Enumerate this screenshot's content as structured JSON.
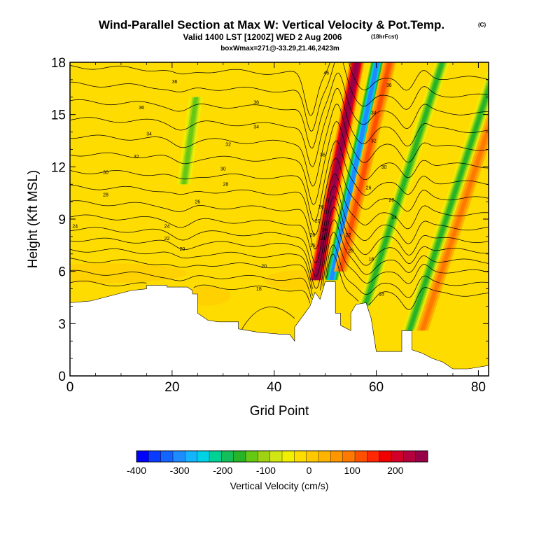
{
  "chart_data": {
    "type": "contour",
    "title": "Wind-Parallel Section at Max W: Vertical Velocity & Pot.Temp.",
    "title_suffix": "(C)",
    "subtitle": "Valid 1400 LST [1200Z] WED 2 Aug 2006",
    "subtitle_suffix": "(18hrFcst)",
    "subtitle2": "boxWmax=271@-33.29,21.46,2423m",
    "xlabel": "Grid Point",
    "ylabel": "Height (Kft MSL)",
    "xlim": [
      0,
      82
    ],
    "ylim": [
      0,
      18
    ],
    "xticks": [
      "0",
      "20",
      "40",
      "60",
      "80"
    ],
    "yticks": [
      "0",
      "3",
      "6",
      "9",
      "12",
      "15",
      "18"
    ],
    "colorbar": {
      "label": "Vertical Velocity (cm/s)",
      "min": -400,
      "max": 275,
      "ticks": [
        "-400",
        "-300",
        "-200",
        "-100",
        "0",
        "100",
        "200"
      ],
      "colors": [
        "#0000ff",
        "#0a3cff",
        "#1464ff",
        "#1e8cff",
        "#14b4ff",
        "#00d2e6",
        "#00d296",
        "#14be5a",
        "#28b428",
        "#64c814",
        "#a0d214",
        "#d2e614",
        "#f0f000",
        "#ffdc00",
        "#ffc800",
        "#ffb400",
        "#ff9600",
        "#ff7800",
        "#ff5000",
        "#ff2800",
        "#f00000",
        "#d20028",
        "#b4003c",
        "#960046"
      ]
    },
    "velocity_features": [
      {
        "name": "updraft-core",
        "x_grid": 48.2,
        "tilt": 0.16,
        "z_bottom_kft": 5.5,
        "z_top_kft": 18,
        "w_cm_s": 271
      },
      {
        "name": "downdraft-core",
        "x_grid": 51.2,
        "tilt": 0.18,
        "z_bottom_kft": 5.5,
        "z_top_kft": 18,
        "w_cm_s": -300
      },
      {
        "name": "updraft-east",
        "x_grid": 53.0,
        "tilt": 0.2,
        "z_bottom_kft": 6,
        "z_top_kft": 18,
        "w_cm_s": 110
      },
      {
        "name": "downdraft-west",
        "x_grid": 22.3,
        "tilt": 0.12,
        "z_bottom_kft": 11,
        "z_top_kft": 16,
        "w_cm_s": -120
      },
      {
        "name": "downdraft-east-1",
        "x_grid": 57.8,
        "tilt": 0.27,
        "z_bottom_kft": 4,
        "z_top_kft": 18,
        "w_cm_s": -150
      },
      {
        "name": "downdraft-east-2",
        "x_grid": 66.5,
        "tilt": 0.28,
        "z_bottom_kft": 2.6,
        "z_top_kft": 18,
        "w_cm_s": -150
      },
      {
        "name": "updraft-east-2",
        "x_grid": 69.0,
        "tilt": 0.28,
        "z_bottom_kft": 2.6,
        "z_top_kft": 18,
        "w_cm_s": 90
      }
    ],
    "terrain_kft": [
      [
        0,
        4.2
      ],
      [
        4,
        4.3
      ],
      [
        8,
        4.6
      ],
      [
        12,
        4.9
      ],
      [
        15,
        5.0
      ],
      [
        15,
        5.2
      ],
      [
        19,
        5.2
      ],
      [
        19,
        5.1
      ],
      [
        23,
        5.1
      ],
      [
        24,
        4.9
      ],
      [
        24,
        4.7
      ],
      [
        25,
        4.7
      ],
      [
        25,
        3.6
      ],
      [
        27,
        3.2
      ],
      [
        29,
        3.1
      ],
      [
        31,
        3.1
      ],
      [
        33,
        3.1
      ],
      [
        33,
        2.7
      ],
      [
        37,
        2.5
      ],
      [
        41,
        2.4
      ],
      [
        43,
        2.4
      ],
      [
        44,
        2.0
      ],
      [
        44,
        2.8
      ],
      [
        46,
        3.6
      ],
      [
        47,
        4.0
      ],
      [
        48,
        4.8
      ],
      [
        49,
        4.4
      ],
      [
        50,
        5.4
      ],
      [
        52,
        5.4
      ],
      [
        52,
        3.6
      ],
      [
        53,
        3.6
      ],
      [
        53,
        2.9
      ],
      [
        55,
        2.6
      ],
      [
        55,
        3.6
      ],
      [
        56,
        4.1
      ],
      [
        58,
        4.2
      ],
      [
        59,
        3.3
      ],
      [
        60,
        1.4
      ],
      [
        65,
        1.4
      ],
      [
        65,
        2.6
      ],
      [
        67,
        2.6
      ],
      [
        67,
        1.5
      ],
      [
        69,
        1.3
      ],
      [
        71,
        1.0
      ],
      [
        73,
        0.8
      ],
      [
        75,
        0.4
      ],
      [
        78,
        0.4
      ],
      [
        82,
        0.6
      ]
    ],
    "theta_contours": [
      {
        "level": "16",
        "base_z_kft": 5.0
      },
      {
        "level": "18",
        "base_z_kft": 5.6
      },
      {
        "level": "20",
        "base_z_kft": 6.3
      },
      {
        "level": "22",
        "base_z_kft": 6.9
      },
      {
        "level": "24",
        "base_z_kft": 7.5
      },
      {
        "level": "26",
        "base_z_kft": 8.1
      },
      {
        "level": "28",
        "base_z_kft": 8.8
      },
      {
        "level": "30",
        "base_z_kft": 9.6
      },
      {
        "level": "32",
        "base_z_kft": 10.5
      },
      {
        "level": "34",
        "base_z_kft": 11.4
      },
      {
        "level": "36",
        "base_z_kft": 12.4
      },
      {
        "level": "38",
        "base_z_kft": 13.4
      },
      {
        "level": "40",
        "base_z_kft": 14.4
      },
      {
        "level": "42",
        "base_z_kft": 15.4
      },
      {
        "level": "44",
        "base_z_kft": 16.4
      },
      {
        "level": "46",
        "base_z_kft": 17.4
      }
    ],
    "contour_labels": [
      {
        "text": "36",
        "x_grid": 20.5,
        "z_kft": 16.8
      },
      {
        "text": "36",
        "x_grid": 14,
        "z_kft": 15.3
      },
      {
        "text": "36",
        "x_grid": 36.5,
        "z_kft": 15.6
      },
      {
        "text": "36",
        "x_grid": 62.5,
        "z_kft": 16.6
      },
      {
        "text": "34",
        "x_grid": 15.5,
        "z_kft": 13.8
      },
      {
        "text": "34",
        "x_grid": 36.5,
        "z_kft": 14.2
      },
      {
        "text": "32",
        "x_grid": 13,
        "z_kft": 12.5
      },
      {
        "text": "32",
        "x_grid": 31,
        "z_kft": 13.2
      },
      {
        "text": "30",
        "x_grid": 7,
        "z_kft": 11.6
      },
      {
        "text": "30",
        "x_grid": 30,
        "z_kft": 11.8
      },
      {
        "text": "28",
        "x_grid": 7,
        "z_kft": 10.3
      },
      {
        "text": "28",
        "x_grid": 30.5,
        "z_kft": 10.9
      },
      {
        "text": "26",
        "x_grid": 25,
        "z_kft": 9.9
      },
      {
        "text": "24",
        "x_grid": 1,
        "z_kft": 8.5
      },
      {
        "text": "24",
        "x_grid": 19,
        "z_kft": 8.5
      },
      {
        "text": "22",
        "x_grid": 19,
        "z_kft": 7.8
      },
      {
        "text": "20",
        "x_grid": 22,
        "z_kft": 7.2
      },
      {
        "text": "20",
        "x_grid": 38,
        "z_kft": 6.2
      },
      {
        "text": "18",
        "x_grid": 37,
        "z_kft": 4.9
      },
      {
        "text": "18",
        "x_grid": 61,
        "z_kft": 4.6
      },
      {
        "text": "18",
        "x_grid": 59,
        "z_kft": 6.6
      },
      {
        "text": "20",
        "x_grid": 55,
        "z_kft": 7.1
      },
      {
        "text": "22",
        "x_grid": 54.5,
        "z_kft": 8.0
      },
      {
        "text": "24",
        "x_grid": 63.5,
        "z_kft": 9.0
      },
      {
        "text": "26",
        "x_grid": 58.5,
        "z_kft": 10.7
      },
      {
        "text": "28",
        "x_grid": 63,
        "z_kft": 10.0
      },
      {
        "text": "30",
        "x_grid": 61.5,
        "z_kft": 11.9
      },
      {
        "text": "32",
        "x_grid": 59.5,
        "z_kft": 13.4
      },
      {
        "text": "34",
        "x_grid": 59.5,
        "z_kft": 15.0
      },
      {
        "text": "36",
        "x_grid": 49.5,
        "z_kft": 12.6
      },
      {
        "text": "26",
        "x_grid": 49.2,
        "z_kft": 9.6
      },
      {
        "text": "20",
        "x_grid": 47.5,
        "z_kft": 8.0
      },
      {
        "text": "16",
        "x_grid": 47.5,
        "z_kft": 7.4
      },
      {
        "text": "20",
        "x_grid": 48.5,
        "z_kft": 8.8
      },
      {
        "text": "24",
        "x_grid": 49.5,
        "z_kft": 7.8
      },
      {
        "text": "18",
        "x_grid": 49.8,
        "z_kft": 8.3
      },
      {
        "text": "46",
        "x_grid": 50.2,
        "z_kft": 17.3
      }
    ]
  }
}
